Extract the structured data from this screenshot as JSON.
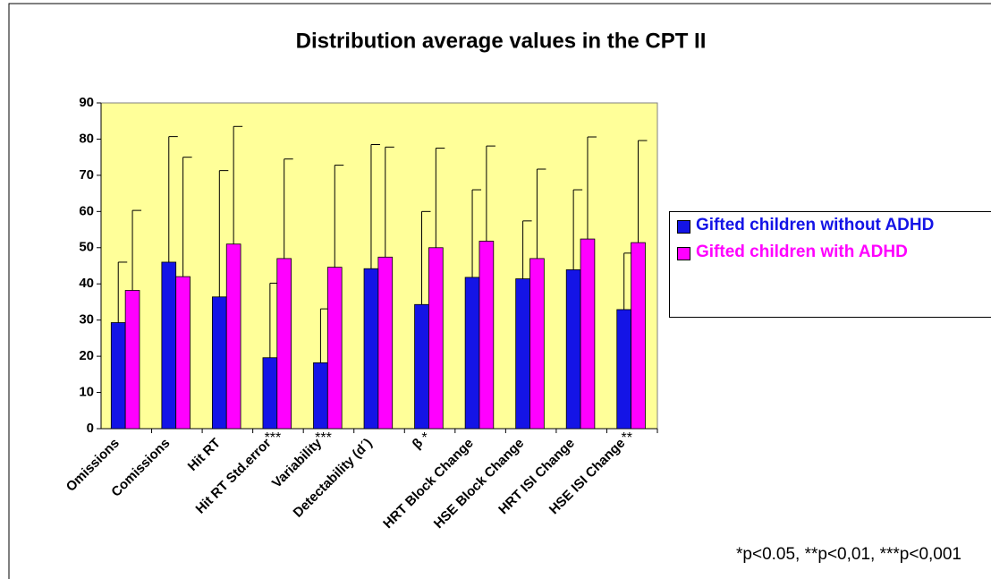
{
  "chart_data": {
    "type": "bar",
    "title": "Distribution average values in the CPT II",
    "categories": [
      "Omissions",
      "Comissions",
      "Hit RT",
      "Hit RT Std.error",
      "Variability",
      "Detectability (d´)",
      "β",
      "HRT Block Change",
      "HSE Block Change",
      "HRT ISI Change",
      "HSE ISI Change"
    ],
    "series": [
      {
        "name": "Gifted children without ADHD",
        "color": "#1414e6",
        "values": [
          29.3,
          46,
          36.4,
          19.6,
          18.2,
          44.2,
          34.3,
          41.8,
          41.4,
          43.9,
          32.9
        ],
        "errors": [
          16.7,
          34.7,
          34.9,
          20.6,
          14.9,
          34.3,
          25.7,
          24.2,
          16,
          22.1,
          15.6
        ]
      },
      {
        "name": "Gifted children with ADHD",
        "color": "#ff00ff",
        "values": [
          38.2,
          42,
          51,
          47,
          44.6,
          47.4,
          50,
          51.8,
          47,
          52.4,
          51.4
        ],
        "errors": [
          22.1,
          33,
          32.5,
          27.5,
          28.2,
          30.4,
          27.5,
          26.3,
          24.7,
          28.2,
          28.2
        ]
      }
    ],
    "significance": [
      null,
      null,
      null,
      "***",
      "***",
      null,
      "*",
      null,
      null,
      null,
      "**"
    ],
    "footnote": "*p<0.05, **p<0,01, ***p<0,001",
    "ylim": [
      0,
      90
    ],
    "yticks": [
      0,
      10,
      20,
      30,
      40,
      50,
      60,
      70,
      80,
      90
    ],
    "grid": false
  }
}
